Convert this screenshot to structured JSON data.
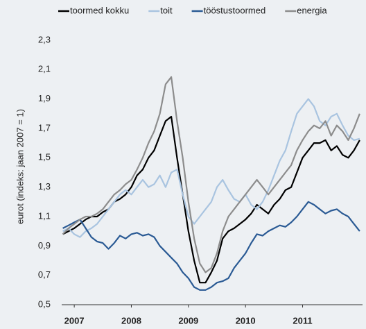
{
  "chart_data": {
    "type": "line",
    "y_label": "eurot  (indeks: jaan 2007 = 1)",
    "x": [
      2006.8,
      2006.9,
      2007.0,
      2007.1,
      2007.2,
      2007.3,
      2007.4,
      2007.5,
      2007.6,
      2007.7,
      2007.8,
      2007.9,
      2008.0,
      2008.1,
      2008.2,
      2008.3,
      2008.4,
      2008.5,
      2008.6,
      2008.7,
      2008.8,
      2008.9,
      2009.0,
      2009.1,
      2009.2,
      2009.3,
      2009.4,
      2009.5,
      2009.6,
      2009.7,
      2009.8,
      2009.9,
      2010.0,
      2010.1,
      2010.2,
      2010.3,
      2010.4,
      2010.5,
      2010.6,
      2010.7,
      2010.8,
      2010.9,
      2011.0,
      2011.1,
      2011.2,
      2011.3,
      2011.4,
      2011.5,
      2011.6,
      2011.7,
      2011.8,
      2011.9,
      2012.0
    ],
    "series": [
      {
        "name": "toormed kokku",
        "color": "#000000",
        "values": [
          0.98,
          1.0,
          1.02,
          1.05,
          1.08,
          1.1,
          1.1,
          1.13,
          1.15,
          1.2,
          1.22,
          1.25,
          1.3,
          1.38,
          1.42,
          1.5,
          1.55,
          1.65,
          1.75,
          1.78,
          1.5,
          1.25,
          1.0,
          0.8,
          0.65,
          0.65,
          0.72,
          0.8,
          0.95,
          1.0,
          1.02,
          1.05,
          1.08,
          1.12,
          1.18,
          1.15,
          1.12,
          1.18,
          1.22,
          1.28,
          1.3,
          1.4,
          1.5,
          1.55,
          1.6,
          1.6,
          1.62,
          1.55,
          1.58,
          1.52,
          1.5,
          1.55,
          1.62
        ]
      },
      {
        "name": "toit",
        "color": "#a9c4e0",
        "values": [
          1.0,
          1.02,
          0.98,
          0.96,
          1.0,
          1.02,
          1.05,
          1.1,
          1.15,
          1.2,
          1.25,
          1.28,
          1.25,
          1.3,
          1.35,
          1.3,
          1.32,
          1.38,
          1.3,
          1.4,
          1.42,
          1.25,
          1.1,
          1.05,
          1.1,
          1.15,
          1.2,
          1.3,
          1.35,
          1.28,
          1.22,
          1.2,
          1.25,
          1.18,
          1.15,
          1.2,
          1.28,
          1.38,
          1.48,
          1.55,
          1.68,
          1.8,
          1.85,
          1.9,
          1.85,
          1.75,
          1.72,
          1.78,
          1.8,
          1.72,
          1.65,
          1.62,
          1.63
        ]
      },
      {
        "name": "tööstustoormed",
        "color": "#2a5a94",
        "values": [
          1.02,
          1.04,
          1.06,
          1.08,
          1.02,
          0.96,
          0.93,
          0.92,
          0.88,
          0.92,
          0.97,
          0.95,
          0.98,
          0.99,
          0.97,
          0.98,
          0.96,
          0.9,
          0.86,
          0.82,
          0.78,
          0.72,
          0.68,
          0.62,
          0.6,
          0.6,
          0.62,
          0.65,
          0.66,
          0.68,
          0.75,
          0.8,
          0.85,
          0.92,
          0.98,
          0.97,
          1.0,
          1.02,
          1.04,
          1.03,
          1.06,
          1.1,
          1.15,
          1.2,
          1.18,
          1.15,
          1.12,
          1.14,
          1.15,
          1.12,
          1.1,
          1.05,
          1.0
        ]
      },
      {
        "name": "energia",
        "color": "#8c8c8c",
        "values": [
          0.98,
          1.02,
          1.05,
          1.08,
          1.1,
          1.1,
          1.12,
          1.15,
          1.2,
          1.25,
          1.28,
          1.32,
          1.35,
          1.42,
          1.5,
          1.6,
          1.68,
          1.8,
          2.0,
          2.05,
          1.75,
          1.5,
          1.2,
          0.95,
          0.78,
          0.72,
          0.75,
          0.85,
          1.0,
          1.1,
          1.15,
          1.2,
          1.25,
          1.3,
          1.35,
          1.3,
          1.25,
          1.3,
          1.35,
          1.4,
          1.45,
          1.55,
          1.62,
          1.68,
          1.72,
          1.7,
          1.75,
          1.65,
          1.72,
          1.68,
          1.62,
          1.7,
          1.8
        ]
      }
    ],
    "xlim": [
      2006.78,
      2012.05
    ],
    "xticks": [
      2007,
      2008,
      2009,
      2010,
      2011
    ],
    "ylim": [
      0.5,
      2.38
    ],
    "yticks": [
      {
        "value": 0.5,
        "label": "0,5"
      },
      {
        "value": 0.7,
        "label": "0,7"
      },
      {
        "value": 0.9,
        "label": "0,9"
      },
      {
        "value": 1.1,
        "label": "1,1"
      },
      {
        "value": 1.3,
        "label": "1,3"
      },
      {
        "value": 1.5,
        "label": "1,5"
      },
      {
        "value": 1.7,
        "label": "1,7"
      },
      {
        "value": 1.9,
        "label": "1,9"
      },
      {
        "value": 2.1,
        "label": "2,1"
      },
      {
        "value": 2.3,
        "label": "2,3"
      }
    ],
    "grid": false,
    "legend": "top"
  }
}
